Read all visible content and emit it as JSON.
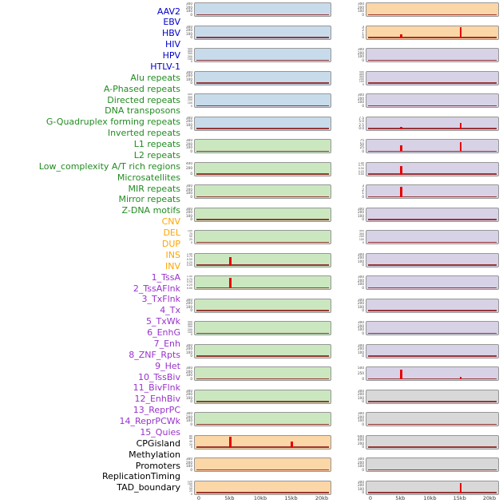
{
  "chart_data": {
    "type": "line",
    "title": "",
    "x_ticks": [
      "0",
      "5kb",
      "10kb",
      "15kb",
      "20kb"
    ],
    "x_range_kb": [
      0,
      20
    ],
    "legend_position": "none",
    "grid": false,
    "palette": {
      "label_virus": "#0000CC",
      "label_repeat": "#228B22",
      "label_sv": "#FFA500",
      "label_chromatin": "#9932CC",
      "label_other": "#000000",
      "panel_blue": "#C7DBEB",
      "panel_green": "#CBE7C0",
      "panel_orange": "#FBD6A6",
      "panel_purple": "#D8D2E6",
      "panel_gray": "#D8D8D8",
      "spike_red": "#E60000",
      "baseline_red": "#8B1A1A"
    },
    "row_labels": [
      {
        "text": "AAV2",
        "group": "virus"
      },
      {
        "text": "EBV",
        "group": "virus"
      },
      {
        "text": "HBV",
        "group": "virus"
      },
      {
        "text": "HIV",
        "group": "virus"
      },
      {
        "text": "HPV",
        "group": "virus"
      },
      {
        "text": "HTLV-1",
        "group": "virus"
      },
      {
        "text": "Alu repeats",
        "group": "repeat"
      },
      {
        "text": "A-Phased repeats",
        "group": "repeat"
      },
      {
        "text": "Directed repeats",
        "group": "repeat"
      },
      {
        "text": "DNA transposons",
        "group": "repeat"
      },
      {
        "text": "G-Quadruplex forming repeats",
        "group": "repeat"
      },
      {
        "text": "Inverted repeats",
        "group": "repeat"
      },
      {
        "text": "L1 repeats",
        "group": "repeat"
      },
      {
        "text": "L2 repeats",
        "group": "repeat"
      },
      {
        "text": "Low_complexity A/T rich regions",
        "group": "repeat"
      },
      {
        "text": "Microsatellites",
        "group": "repeat"
      },
      {
        "text": "MIR repeats",
        "group": "repeat"
      },
      {
        "text": "Mirror repeats",
        "group": "repeat"
      },
      {
        "text": "Z-DNA motifs",
        "group": "repeat"
      },
      {
        "text": "CNV",
        "group": "sv"
      },
      {
        "text": "DEL",
        "group": "sv"
      },
      {
        "text": "DUP",
        "group": "sv"
      },
      {
        "text": "INS",
        "group": "sv"
      },
      {
        "text": "INV",
        "group": "sv"
      },
      {
        "text": "1_TssA",
        "group": "chromatin"
      },
      {
        "text": "2_TssAFlnk",
        "group": "chromatin"
      },
      {
        "text": "3_TxFlnk",
        "group": "chromatin"
      },
      {
        "text": "4_Tx",
        "group": "chromatin"
      },
      {
        "text": "5_TxWk",
        "group": "chromatin"
      },
      {
        "text": "6_EnhG",
        "group": "chromatin"
      },
      {
        "text": "7_Enh",
        "group": "chromatin"
      },
      {
        "text": "8_ZNF_Rpts",
        "group": "chromatin"
      },
      {
        "text": "9_Het",
        "group": "chromatin"
      },
      {
        "text": "10_TssBiv",
        "group": "chromatin"
      },
      {
        "text": "11_BivFlnk",
        "group": "chromatin"
      },
      {
        "text": "12_EnhBiv",
        "group": "chromatin"
      },
      {
        "text": "13_ReprPC",
        "group": "chromatin"
      },
      {
        "text": "14_ReprPCWk",
        "group": "chromatin"
      },
      {
        "text": "15_Quies",
        "group": "chromatin"
      },
      {
        "text": "CPGisland",
        "group": "other"
      },
      {
        "text": "Methylation",
        "group": "other"
      },
      {
        "text": "Promoters",
        "group": "other"
      },
      {
        "text": "ReplicationTiming",
        "group": "other"
      },
      {
        "text": "TAD_boundary",
        "group": "other"
      }
    ],
    "left_panels": [
      {
        "bg": "blue",
        "yticks": [
          "300",
          "200",
          "100",
          "0"
        ],
        "spikes": []
      },
      {
        "bg": "blue",
        "yticks": [
          "300",
          "200",
          "100",
          "0"
        ],
        "spikes": []
      },
      {
        "bg": "blue",
        "yticks": [
          "500",
          "400",
          "300",
          "200",
          "100",
          "0"
        ],
        "spikes": []
      },
      {
        "bg": "blue",
        "yticks": [
          "300",
          "200",
          "100",
          "0"
        ],
        "spikes": []
      },
      {
        "bg": "blue",
        "yticks": [
          "400",
          "300",
          "200",
          "100",
          "0"
        ],
        "spikes": []
      },
      {
        "bg": "blue",
        "yticks": [
          "300",
          "200",
          "100",
          "0"
        ],
        "spikes": []
      },
      {
        "bg": "green",
        "yticks": [
          "300",
          "200",
          "100",
          "0"
        ],
        "spikes": []
      },
      {
        "bg": "green",
        "yticks": [
          "400",
          "200",
          "0"
        ],
        "spikes": []
      },
      {
        "bg": "green",
        "yticks": [
          "300",
          "200",
          "100",
          "0"
        ],
        "spikes": []
      },
      {
        "bg": "green",
        "yticks": [
          "300",
          "200",
          "100",
          "0"
        ],
        "spikes": []
      },
      {
        "bg": "green",
        "yticks": [
          "100",
          "75",
          "50",
          "25",
          "0"
        ],
        "spikes": []
      },
      {
        "bg": "green",
        "yticks": [
          "1.00",
          "0.75",
          "0.50",
          "0.25",
          "0.00"
        ],
        "spikes": [
          {
            "x_kb": 5,
            "height": 0.75
          }
        ]
      },
      {
        "bg": "green",
        "yticks": [
          "1.00",
          "0.75",
          "0.50",
          "0.25",
          "0.00"
        ],
        "spikes": [
          {
            "x_kb": 5,
            "height": 0.9
          }
        ]
      },
      {
        "bg": "green",
        "yticks": [
          "300",
          "200",
          "100",
          "0"
        ],
        "spikes": []
      },
      {
        "bg": "green",
        "yticks": [
          "500",
          "400",
          "300",
          "200",
          "100",
          "0"
        ],
        "spikes": []
      },
      {
        "bg": "green",
        "yticks": [
          "300",
          "200",
          "100",
          "0"
        ],
        "spikes": []
      },
      {
        "bg": "green",
        "yticks": [
          "300",
          "200",
          "100",
          "0"
        ],
        "spikes": []
      },
      {
        "bg": "green",
        "yticks": [
          "300",
          "200",
          "100",
          "0"
        ],
        "spikes": []
      },
      {
        "bg": "green",
        "yticks": [
          "300",
          "200",
          "100",
          "0"
        ],
        "spikes": []
      },
      {
        "bg": "orange",
        "yticks": [
          "80",
          "60",
          "40",
          "20",
          "0"
        ],
        "spikes": [
          {
            "x_kb": 5,
            "height": 0.95
          },
          {
            "x_kb": 15,
            "height": 0.55
          }
        ]
      },
      {
        "bg": "orange",
        "yticks": [
          "300",
          "200",
          "100",
          "0"
        ],
        "spikes": []
      },
      {
        "bg": "orange",
        "yticks": [
          "125",
          "100",
          "75",
          "50",
          "25",
          "0"
        ],
        "spikes": []
      }
    ],
    "right_panels": [
      {
        "bg": "orange",
        "yticks": [
          "300",
          "200",
          "100",
          "0"
        ],
        "spikes": []
      },
      {
        "bg": "orange",
        "yticks": [
          "3",
          "2",
          "1",
          "0"
        ],
        "spikes": [
          {
            "x_kb": 5,
            "height": 0.28
          },
          {
            "x_kb": 15,
            "height": 0.95
          }
        ]
      },
      {
        "bg": "purple",
        "yticks": [
          "300",
          "200",
          "100",
          "0"
        ],
        "spikes": []
      },
      {
        "bg": "purple",
        "yticks": [
          "500",
          "400",
          "300",
          "200",
          "100",
          "0"
        ],
        "spikes": []
      },
      {
        "bg": "purple",
        "yticks": [
          "300",
          "200",
          "100",
          "0"
        ],
        "spikes": []
      },
      {
        "bg": "purple",
        "yticks": [
          "7.5",
          "5.0",
          "2.5",
          "0.0"
        ],
        "spikes": [
          {
            "x_kb": 5,
            "height": 0.18
          },
          {
            "x_kb": 15,
            "height": 0.55
          }
        ]
      },
      {
        "bg": "purple",
        "yticks": [
          "75",
          "50",
          "25",
          "0"
        ],
        "spikes": [
          {
            "x_kb": 5,
            "height": 0.55
          },
          {
            "x_kb": 15,
            "height": 0.8
          }
        ]
      },
      {
        "bg": "purple",
        "yticks": [
          "1.00",
          "0.75",
          "0.50",
          "0.25",
          "0.00"
        ],
        "spikes": [
          {
            "x_kb": 5,
            "height": 0.7
          }
        ]
      },
      {
        "bg": "purple",
        "yticks": [
          "3",
          "2",
          "1",
          "0"
        ],
        "spikes": [
          {
            "x_kb": 5,
            "height": 0.9
          }
        ]
      },
      {
        "bg": "purple",
        "yticks": [
          "300",
          "200",
          "100",
          "0"
        ],
        "spikes": []
      },
      {
        "bg": "purple",
        "yticks": [
          "400",
          "300",
          "200",
          "100",
          "0"
        ],
        "spikes": []
      },
      {
        "bg": "purple",
        "yticks": [
          "300",
          "200",
          "100",
          "0"
        ],
        "spikes": []
      },
      {
        "bg": "purple",
        "yticks": [
          "300",
          "200",
          "100",
          "0"
        ],
        "spikes": []
      },
      {
        "bg": "purple",
        "yticks": [
          "300",
          "200",
          "100",
          "0"
        ],
        "spikes": []
      },
      {
        "bg": "purple",
        "yticks": [
          "300",
          "200",
          "100",
          "0"
        ],
        "spikes": []
      },
      {
        "bg": "purple",
        "yticks": [
          "300",
          "200",
          "100",
          "0"
        ],
        "spikes": []
      },
      {
        "bg": "purple",
        "yticks": [
          "500",
          "250",
          "0"
        ],
        "spikes": [
          {
            "x_kb": 5,
            "height": 0.8
          },
          {
            "x_kb": 15,
            "height": 0.22
          }
        ]
      },
      {
        "bg": "gray",
        "yticks": [
          "300",
          "200",
          "100",
          "0"
        ],
        "spikes": []
      },
      {
        "bg": "gray",
        "yticks": [
          "300",
          "200",
          "100",
          "0"
        ],
        "spikes": []
      },
      {
        "bg": "gray",
        "yticks": [
          "600",
          "400",
          "200",
          "0"
        ],
        "spikes": []
      },
      {
        "bg": "gray",
        "yticks": [
          "300",
          "200",
          "100",
          "0"
        ],
        "spikes": []
      },
      {
        "bg": "gray",
        "yticks": [
          "300",
          "200",
          "100",
          "0"
        ],
        "spikes": [
          {
            "x_kb": 15,
            "height": 0.85
          }
        ]
      }
    ]
  }
}
